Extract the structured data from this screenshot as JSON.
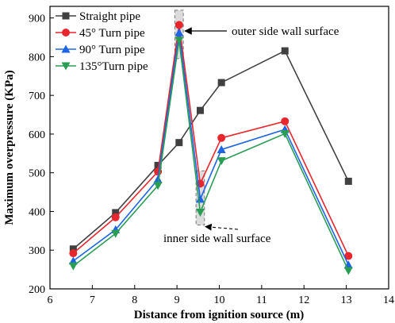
{
  "chart_data": {
    "type": "line",
    "xlabel": "Distance from ignition source (m)",
    "ylabel": "Maximum overpressure (KPa)",
    "xlim": [
      6,
      14
    ],
    "ylim": [
      200,
      930
    ],
    "xticks": [
      6,
      7,
      8,
      9,
      10,
      11,
      12,
      13,
      14
    ],
    "yticks": [
      200,
      300,
      400,
      500,
      600,
      700,
      800,
      900
    ],
    "grid": false,
    "legend_position": "top-left",
    "series": [
      {
        "name": "Straight pipe",
        "color": "#404040",
        "marker": "square",
        "x": [
          6.55,
          7.55,
          8.55,
          9.05,
          9.55,
          10.05,
          11.55,
          13.05
        ],
        "y": [
          303,
          397,
          519,
          578,
          661,
          733,
          815,
          478
        ]
      },
      {
        "name": "45° Turn pipe",
        "color": "#e8262d",
        "marker": "circle",
        "x": [
          6.55,
          7.55,
          8.55,
          9.05,
          9.55,
          10.05,
          11.55,
          13.05
        ],
        "y": [
          292,
          385,
          503,
          882,
          472,
          590,
          633,
          285
        ]
      },
      {
        "name": "90° Turn pipe",
        "color": "#1e64e6",
        "marker": "triangle-up",
        "x": [
          6.55,
          7.55,
          8.55,
          9.05,
          9.55,
          10.05,
          11.55,
          13.05
        ],
        "y": [
          272,
          353,
          483,
          862,
          432,
          560,
          612,
          262
        ]
      },
      {
        "name": "135°Turn pipe",
        "color": "#2a9d55",
        "marker": "triangle-down",
        "x": [
          6.55,
          7.55,
          8.55,
          9.05,
          9.55,
          10.05,
          11.55,
          13.05
        ],
        "y": [
          259,
          343,
          467,
          842,
          398,
          531,
          601,
          247
        ]
      }
    ],
    "annotations": [
      {
        "text": "outer side wall surface",
        "x_range": [
          8.95,
          9.15
        ],
        "y_range": [
          795,
          920
        ],
        "arrow": "from-text-to-box"
      },
      {
        "text": "inner side wall surface",
        "x_range": [
          9.45,
          9.65
        ],
        "y_range": [
          365,
          505
        ],
        "arrow": "from-text-to-box"
      }
    ]
  }
}
